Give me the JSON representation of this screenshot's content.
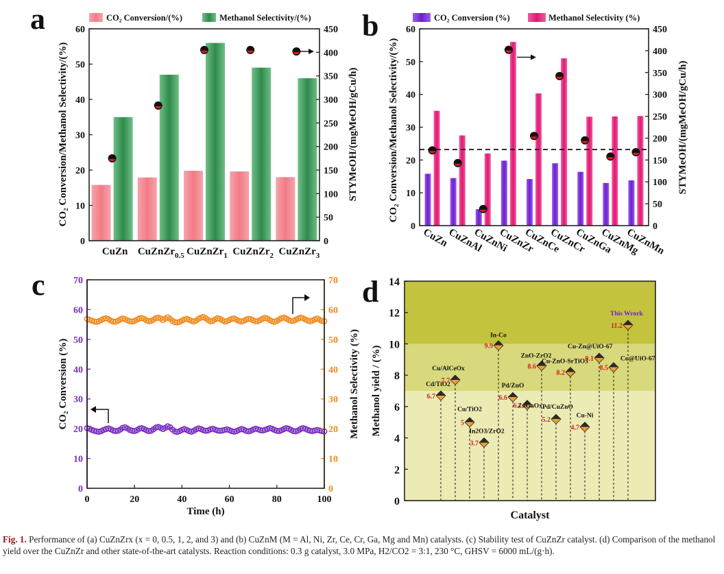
{
  "panels": {
    "a": {
      "letter": "a",
      "legend": [
        "CO₂ Conversion/(%)",
        "Methanol Selectivity/(%)"
      ],
      "ylabel_left": "CO₂ Conversion/Methanol Selectivity/(%)",
      "ylabel_right": "STYMeOH/(mgMeOH/gCu/h)",
      "y_ticks_left": [
        "0",
        "10",
        "20",
        "30",
        "40",
        "50",
        "60"
      ],
      "y_ticks_right": [
        "0",
        "50",
        "100",
        "150",
        "200",
        "250",
        "300",
        "350",
        "400",
        "450"
      ]
    },
    "b": {
      "letter": "b",
      "legend": [
        "CO₂ Conversion (%)",
        "Methanol Selectivity (%)"
      ],
      "ylabel_left": "CO₂ Conversion/Methanol Selectivity/(%)",
      "ylabel_right": "STYMeOH/(mgMeOH/gCu/h)",
      "y_ticks_left": [
        "0",
        "10",
        "20",
        "30",
        "40",
        "50",
        "60"
      ],
      "y_ticks_right": [
        "0",
        "50",
        "100",
        "150",
        "200",
        "250",
        "300",
        "350",
        "400",
        "450"
      ]
    },
    "c": {
      "letter": "c",
      "xlabel": "Time (h)",
      "ylabel_left": "CO₂ Conversion (%)",
      "ylabel_right": "Methanol Selectivity (%)",
      "x_ticks": [
        "0",
        "20",
        "40",
        "60",
        "80",
        "100"
      ],
      "y_ticks": [
        "0",
        "10",
        "20",
        "30",
        "40",
        "50",
        "60",
        "70"
      ]
    },
    "d": {
      "letter": "d",
      "xlabel": "Catalyst",
      "ylabel": "Methanol yield / (%)",
      "y_ticks": [
        "0",
        "2",
        "4",
        "6",
        "8",
        "10",
        "12",
        "14"
      ]
    }
  },
  "chart_data": [
    {
      "id": "a",
      "type": "bar",
      "categories": [
        "CuZn",
        "CuZnZr0.5",
        "CuZnZr1",
        "CuZnZr2",
        "CuZnZr3"
      ],
      "series": [
        {
          "name": "CO₂ Conversion/(%)",
          "axis": "left",
          "values": [
            15.8,
            17.9,
            19.8,
            19.6,
            18.0
          ],
          "color": "#f4878f"
        },
        {
          "name": "Methanol Selectivity/(%)",
          "axis": "left",
          "values": [
            35.0,
            47.0,
            56.0,
            49.0,
            46.0
          ],
          "color": "#3f9a5c"
        },
        {
          "name": "STY",
          "axis": "right",
          "type": "scatter",
          "values": [
            175,
            287,
            405,
            405,
            402
          ]
        }
      ],
      "ylim_left": [
        0,
        60
      ],
      "ylim_right": [
        0,
        450
      ]
    },
    {
      "id": "b",
      "type": "bar",
      "categories": [
        "CuZn",
        "CuZnAl",
        "CuZnNi",
        "CuZnZr",
        "CuZnCe",
        "CuZnCr",
        "CuZnGa",
        "CuZnMg",
        "CuZnMn"
      ],
      "series": [
        {
          "name": "CO₂ Conversion (%)",
          "axis": "left",
          "values": [
            15.8,
            14.5,
            5.0,
            19.8,
            14.2,
            19.0,
            16.4,
            13.0,
            13.8
          ],
          "color": "#7a2fd6"
        },
        {
          "name": "Methanol Selectivity (%)",
          "axis": "left",
          "values": [
            35.0,
            27.5,
            22.0,
            56.0,
            40.3,
            51.0,
            33.2,
            33.3,
            33.4
          ],
          "color": "#e8287e"
        },
        {
          "name": "STY",
          "axis": "right",
          "type": "scatter",
          "values": [
            172,
            143,
            38,
            402,
            205,
            342,
            195,
            158,
            168
          ]
        }
      ],
      "reference_line": 23.2,
      "ylim_left": [
        0,
        60
      ],
      "ylim_right": [
        0,
        450
      ]
    },
    {
      "id": "c",
      "type": "line",
      "x": [
        0,
        1,
        2,
        3,
        4,
        5,
        6,
        7,
        8,
        9,
        10,
        11,
        12,
        13,
        14,
        15,
        16,
        17,
        18,
        19,
        20,
        21,
        22,
        23,
        24,
        25,
        26,
        27,
        28,
        29,
        30,
        31,
        32,
        33,
        34,
        35,
        36,
        37,
        38,
        39,
        40,
        41,
        42,
        43,
        44,
        45,
        46,
        47,
        48,
        49,
        50,
        51,
        52,
        53,
        54,
        55,
        56,
        57,
        58,
        59,
        60,
        61,
        62,
        63,
        64,
        65,
        66,
        67,
        68,
        69,
        70,
        71,
        72,
        73,
        74,
        75,
        76,
        77,
        78,
        79,
        80,
        81,
        82,
        83,
        84,
        85,
        86,
        87,
        88,
        89,
        90,
        91,
        92,
        93,
        94,
        95,
        96,
        97,
        98,
        99,
        100
      ],
      "series": [
        {
          "name": "CO₂ Conversion",
          "axis": "left",
          "color": "#7a2fc0",
          "values": [
            20.2,
            20.0,
            19.6,
            19.3,
            19.1,
            19.0,
            19.2,
            19.6,
            19.9,
            20.1,
            19.8,
            19.4,
            19.2,
            19.3,
            19.7,
            20.3,
            20.5,
            20.1,
            19.6,
            19.3,
            19.2,
            19.5,
            20.0,
            20.2,
            19.9,
            19.5,
            19.2,
            19.3,
            19.8,
            20.4,
            20.6,
            20.3,
            19.9,
            20.3,
            20.8,
            20.5,
            19.7,
            19.1,
            18.9,
            19.2,
            19.6,
            19.9,
            19.6,
            19.2,
            19.0,
            19.3,
            19.8,
            20.1,
            19.9,
            19.5,
            19.3,
            19.4,
            19.8,
            20.0,
            19.7,
            19.4,
            19.3,
            19.4,
            19.6,
            19.8,
            19.5,
            19.2,
            19.0,
            19.2,
            19.6,
            19.9,
            19.7,
            19.3,
            19.1,
            19.3,
            19.7,
            20.0,
            19.8,
            19.5,
            19.4,
            19.6,
            19.9,
            20.2,
            20.0,
            19.6,
            19.3,
            19.2,
            19.5,
            19.9,
            20.2,
            20.0,
            19.6,
            19.2,
            19.1,
            19.4,
            19.9,
            20.2,
            20.0,
            19.6,
            19.3,
            19.2,
            19.4,
            19.6,
            19.4,
            19.2,
            19.1
          ]
        },
        {
          "name": "Methanol Selectivity",
          "axis": "right",
          "color": "#f08a1c",
          "values": [
            56.9,
            56.6,
            56.3,
            56.0,
            55.9,
            56.1,
            56.5,
            56.9,
            57.1,
            56.8,
            56.3,
            56.0,
            55.9,
            56.2,
            56.7,
            57.0,
            56.8,
            56.4,
            56.1,
            56.0,
            56.2,
            56.6,
            57.0,
            57.2,
            56.9,
            56.4,
            56.1,
            56.2,
            56.6,
            57.1,
            57.3,
            57.0,
            56.5,
            57.0,
            57.4,
            56.9,
            56.2,
            55.8,
            55.7,
            55.9,
            56.3,
            56.7,
            56.9,
            56.6,
            56.2,
            56.0,
            56.3,
            56.9,
            57.3,
            57.5,
            57.1,
            56.5,
            56.1,
            56.2,
            56.7,
            57.1,
            56.9,
            56.4,
            56.0,
            56.1,
            56.5,
            56.9,
            57.0,
            56.6,
            56.2,
            56.0,
            56.2,
            56.6,
            56.9,
            56.8,
            56.4,
            56.1,
            56.1,
            56.5,
            56.9,
            57.2,
            57.0,
            56.5,
            56.1,
            55.9,
            56.2,
            56.7,
            57.1,
            57.3,
            57.0,
            56.5,
            56.2,
            56.2,
            56.6,
            57.0,
            57.3,
            57.1,
            56.7,
            56.3,
            56.1,
            56.3,
            56.7,
            57.0,
            56.6,
            56.2,
            56.1
          ]
        }
      ],
      "xlim": [
        0,
        100
      ],
      "ylim": [
        0,
        70
      ]
    },
    {
      "id": "d",
      "type": "scatter",
      "points": [
        {
          "label": "Cd/TiO2",
          "value": 6.7,
          "value_text": "6.7"
        },
        {
          "label": "Cu/AlCeOx",
          "value": 7.7,
          "value_text": "7.7"
        },
        {
          "label": "Cu/TiO2",
          "value": 5.0,
          "value_text": "5"
        },
        {
          "label": "In2O3/ZrO2",
          "value": 3.7,
          "value_text": "3.7"
        },
        {
          "label": "In-Co",
          "value": 9.9,
          "value_text": "9.9"
        },
        {
          "label": "Pd/ZnO",
          "value": 6.6,
          "value_text": "6.6"
        },
        {
          "label": "ZnGaOx",
          "value": 6.1,
          "value_text": "6.1"
        },
        {
          "label": "ZnO-ZrO2",
          "value": 8.6,
          "value_text": "8.6"
        },
        {
          "label": "Pd/CuZnO",
          "value": 5.2,
          "value_text": "5.2"
        },
        {
          "label": "Cu-ZnO-SrTiO3",
          "value": 8.2,
          "value_text": "8.2"
        },
        {
          "label": "Cu-Ni",
          "value": 4.7,
          "value_text": "4.7"
        },
        {
          "label": "Cu-Zn@UiO-67",
          "value": 9.1,
          "value_text": "9.1"
        },
        {
          "label": "Cu@UiO-67",
          "value": 8.5,
          "value_text": "8.5"
        },
        {
          "label": "This Wrork",
          "value": 11.2,
          "value_text": "11.2"
        }
      ],
      "bands": [
        {
          "from": 0,
          "to": 7
        },
        {
          "from": 7,
          "to": 10
        },
        {
          "from": 10,
          "to": 14
        }
      ],
      "ylim": [
        0,
        14
      ]
    }
  ],
  "caption": {
    "label": "Fig. 1.",
    "text": "Performance of (a) CuZnZrx (x = 0, 0.5, 1, 2, and 3) and (b) CuZnM (M = Al, Ni, Zr, Ce, Cr, Ga, Mg and Mn) catalysts. (c) Stability test of CuZnZr catalyst. (d) Comparison of the methanol yield over the CuZnZr and other state-of-the-art catalysts. Reaction conditions: 0.3 g catalyst, 3.0 MPa, H2/CO2 = 3:1, 230 °C, GHSV = 6000 mL/(g·h)."
  }
}
